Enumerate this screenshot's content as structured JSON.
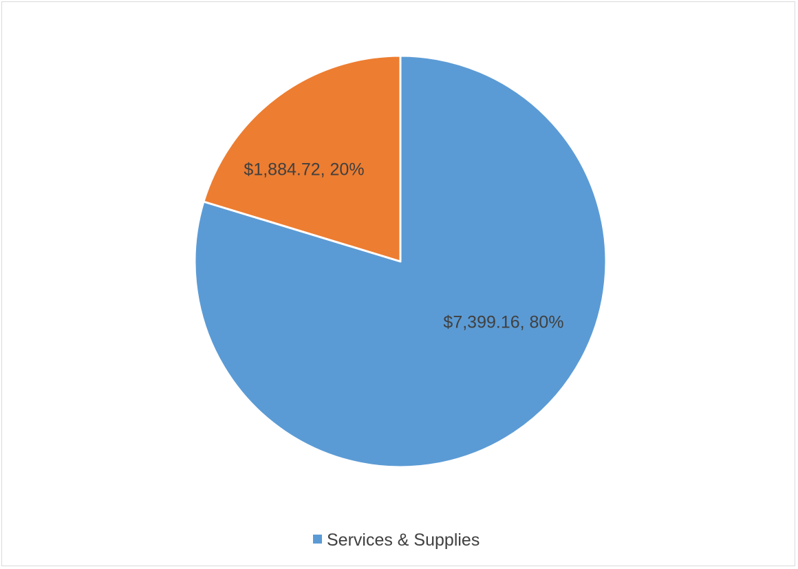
{
  "chart_data": {
    "type": "pie",
    "slices": [
      {
        "name": "Services & Supplies",
        "value": 7399.16,
        "percent": 80,
        "label": "$7,399.16, 80%",
        "color": "#5b9bd5"
      },
      {
        "name": "",
        "value": 1884.72,
        "percent": 20,
        "label": "$1,884.72, 20%",
        "color": "#ed7d31"
      }
    ],
    "legend": {
      "position": "bottom",
      "entries": [
        {
          "label": "Services & Supplies",
          "color": "#5b9bd5"
        }
      ]
    },
    "title": ""
  }
}
